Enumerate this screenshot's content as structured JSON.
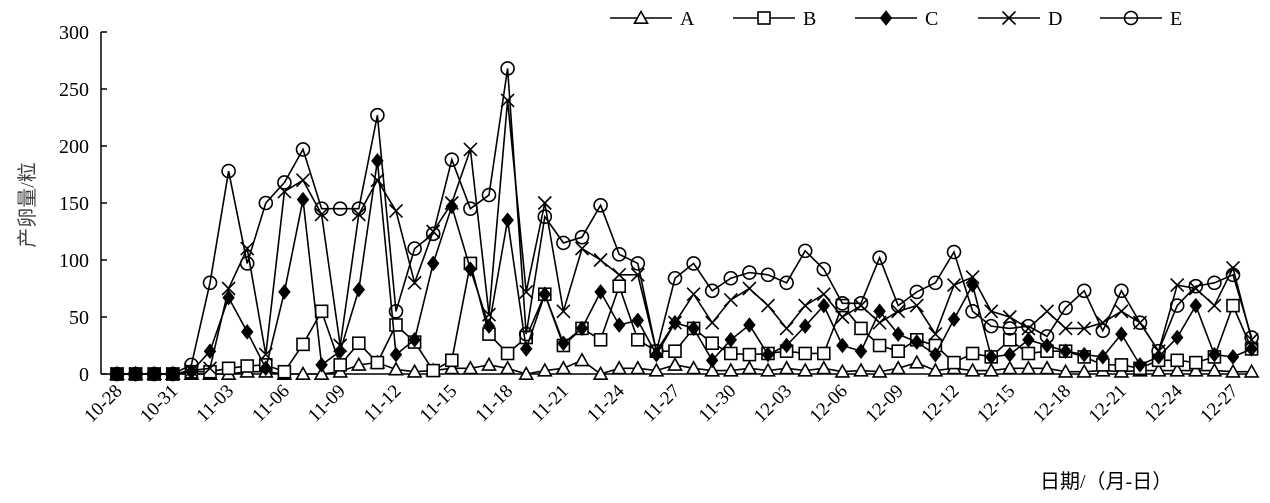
{
  "chart_data": {
    "type": "line",
    "title": "",
    "xlabel": "日期/（月-日）",
    "ylabel": "产卵量/粒",
    "ylim": [
      0,
      300
    ],
    "yticks": [
      0,
      50,
      100,
      150,
      200,
      250,
      300
    ],
    "grid": false,
    "legend_position": "top-right",
    "categories": [
      "10-28",
      "10-29",
      "10-30",
      "10-31",
      "11-01",
      "11-02",
      "11-03",
      "11-04",
      "11-05",
      "11-06",
      "11-07",
      "11-08",
      "11-09",
      "11-10",
      "11-11",
      "11-12",
      "11-13",
      "11-14",
      "11-15",
      "11-16",
      "11-17",
      "11-18",
      "11-19",
      "11-20",
      "11-21",
      "11-22",
      "11-23",
      "11-24",
      "11-25",
      "11-26",
      "11-27",
      "11-28",
      "11-29",
      "11-30",
      "12-01",
      "12-02",
      "12-03",
      "12-04",
      "12-05",
      "12-06",
      "12-07",
      "12-08",
      "12-09",
      "12-10",
      "12-11",
      "12-12",
      "12-13",
      "12-14",
      "12-15",
      "12-16",
      "12-17",
      "12-18",
      "12-19",
      "12-20",
      "12-21",
      "12-22",
      "12-23",
      "12-24",
      "12-25",
      "12-26",
      "12-27",
      "12-28"
    ],
    "tick_labels": [
      "10-28",
      "10-31",
      "11-03",
      "11-06",
      "11-09",
      "11-12",
      "11-15",
      "11-18",
      "11-21",
      "11-24",
      "11-27",
      "11-30",
      "12-03",
      "12-06",
      "12-09",
      "12-12",
      "12-15",
      "12-18",
      "12-21",
      "12-24",
      "12-27"
    ],
    "series": [
      {
        "name": "A",
        "marker": "triangle-open",
        "values": [
          0,
          0,
          0,
          0,
          0,
          0,
          0,
          2,
          2,
          0,
          0,
          0,
          2,
          8,
          10,
          4,
          2,
          3,
          5,
          5,
          8,
          5,
          0,
          3,
          5,
          12,
          0,
          5,
          5,
          3,
          8,
          5,
          3,
          3,
          5,
          3,
          5,
          3,
          5,
          2,
          3,
          2,
          5,
          10,
          3,
          5,
          3,
          3,
          5,
          5,
          5,
          2,
          2,
          3,
          2,
          3,
          3,
          3,
          3,
          3,
          2,
          2
        ]
      },
      {
        "name": "B",
        "marker": "square-open",
        "values": [
          0,
          0,
          0,
          0,
          2,
          2,
          5,
          7,
          8,
          2,
          26,
          55,
          8,
          27,
          10,
          43,
          28,
          3,
          12,
          97,
          35,
          18,
          32,
          70,
          25,
          40,
          30,
          77,
          30,
          20,
          20,
          40,
          27,
          18,
          17,
          18,
          20,
          18,
          18,
          60,
          40,
          25,
          20,
          30,
          25,
          10,
          18,
          15,
          30,
          18,
          20,
          20,
          15,
          8,
          8,
          5,
          12,
          12,
          10,
          15,
          60,
          22
        ]
      },
      {
        "name": "C",
        "marker": "diamond-filled",
        "values": [
          0,
          0,
          0,
          0,
          2,
          20,
          67,
          37,
          5,
          72,
          153,
          8,
          20,
          74,
          187,
          17,
          30,
          97,
          147,
          92,
          42,
          135,
          22,
          70,
          27,
          40,
          72,
          43,
          47,
          17,
          45,
          40,
          12,
          30,
          43,
          17,
          25,
          42,
          60,
          25,
          20,
          55,
          35,
          28,
          17,
          48,
          78,
          15,
          17,
          30,
          25,
          20,
          17,
          15,
          35,
          8,
          15,
          32,
          60,
          17,
          15,
          22
        ]
      },
      {
        "name": "D",
        "marker": "cross",
        "values": [
          0,
          0,
          0,
          0,
          3,
          5,
          75,
          110,
          17,
          160,
          170,
          140,
          25,
          140,
          170,
          143,
          80,
          125,
          150,
          197,
          52,
          240,
          72,
          150,
          55,
          110,
          100,
          87,
          87,
          20,
          45,
          70,
          45,
          65,
          75,
          60,
          40,
          60,
          70,
          50,
          60,
          45,
          55,
          60,
          35,
          78,
          85,
          55,
          50,
          40,
          55,
          40,
          40,
          45,
          55,
          45,
          20,
          78,
          75,
          60,
          93,
          30
        ]
      },
      {
        "name": "E",
        "marker": "circle-open",
        "values": [
          0,
          0,
          0,
          0,
          8,
          80,
          178,
          97,
          150,
          168,
          197,
          145,
          145,
          145,
          227,
          55,
          110,
          123,
          188,
          145,
          157,
          268,
          35,
          138,
          115,
          120,
          148,
          105,
          97,
          20,
          84,
          97,
          73,
          84,
          89,
          87,
          80,
          108,
          92,
          62,
          62,
          102,
          60,
          72,
          80,
          107,
          55,
          42,
          40,
          42,
          33,
          58,
          73,
          38,
          73,
          45,
          20,
          60,
          77,
          80,
          87,
          32
        ]
      }
    ]
  }
}
